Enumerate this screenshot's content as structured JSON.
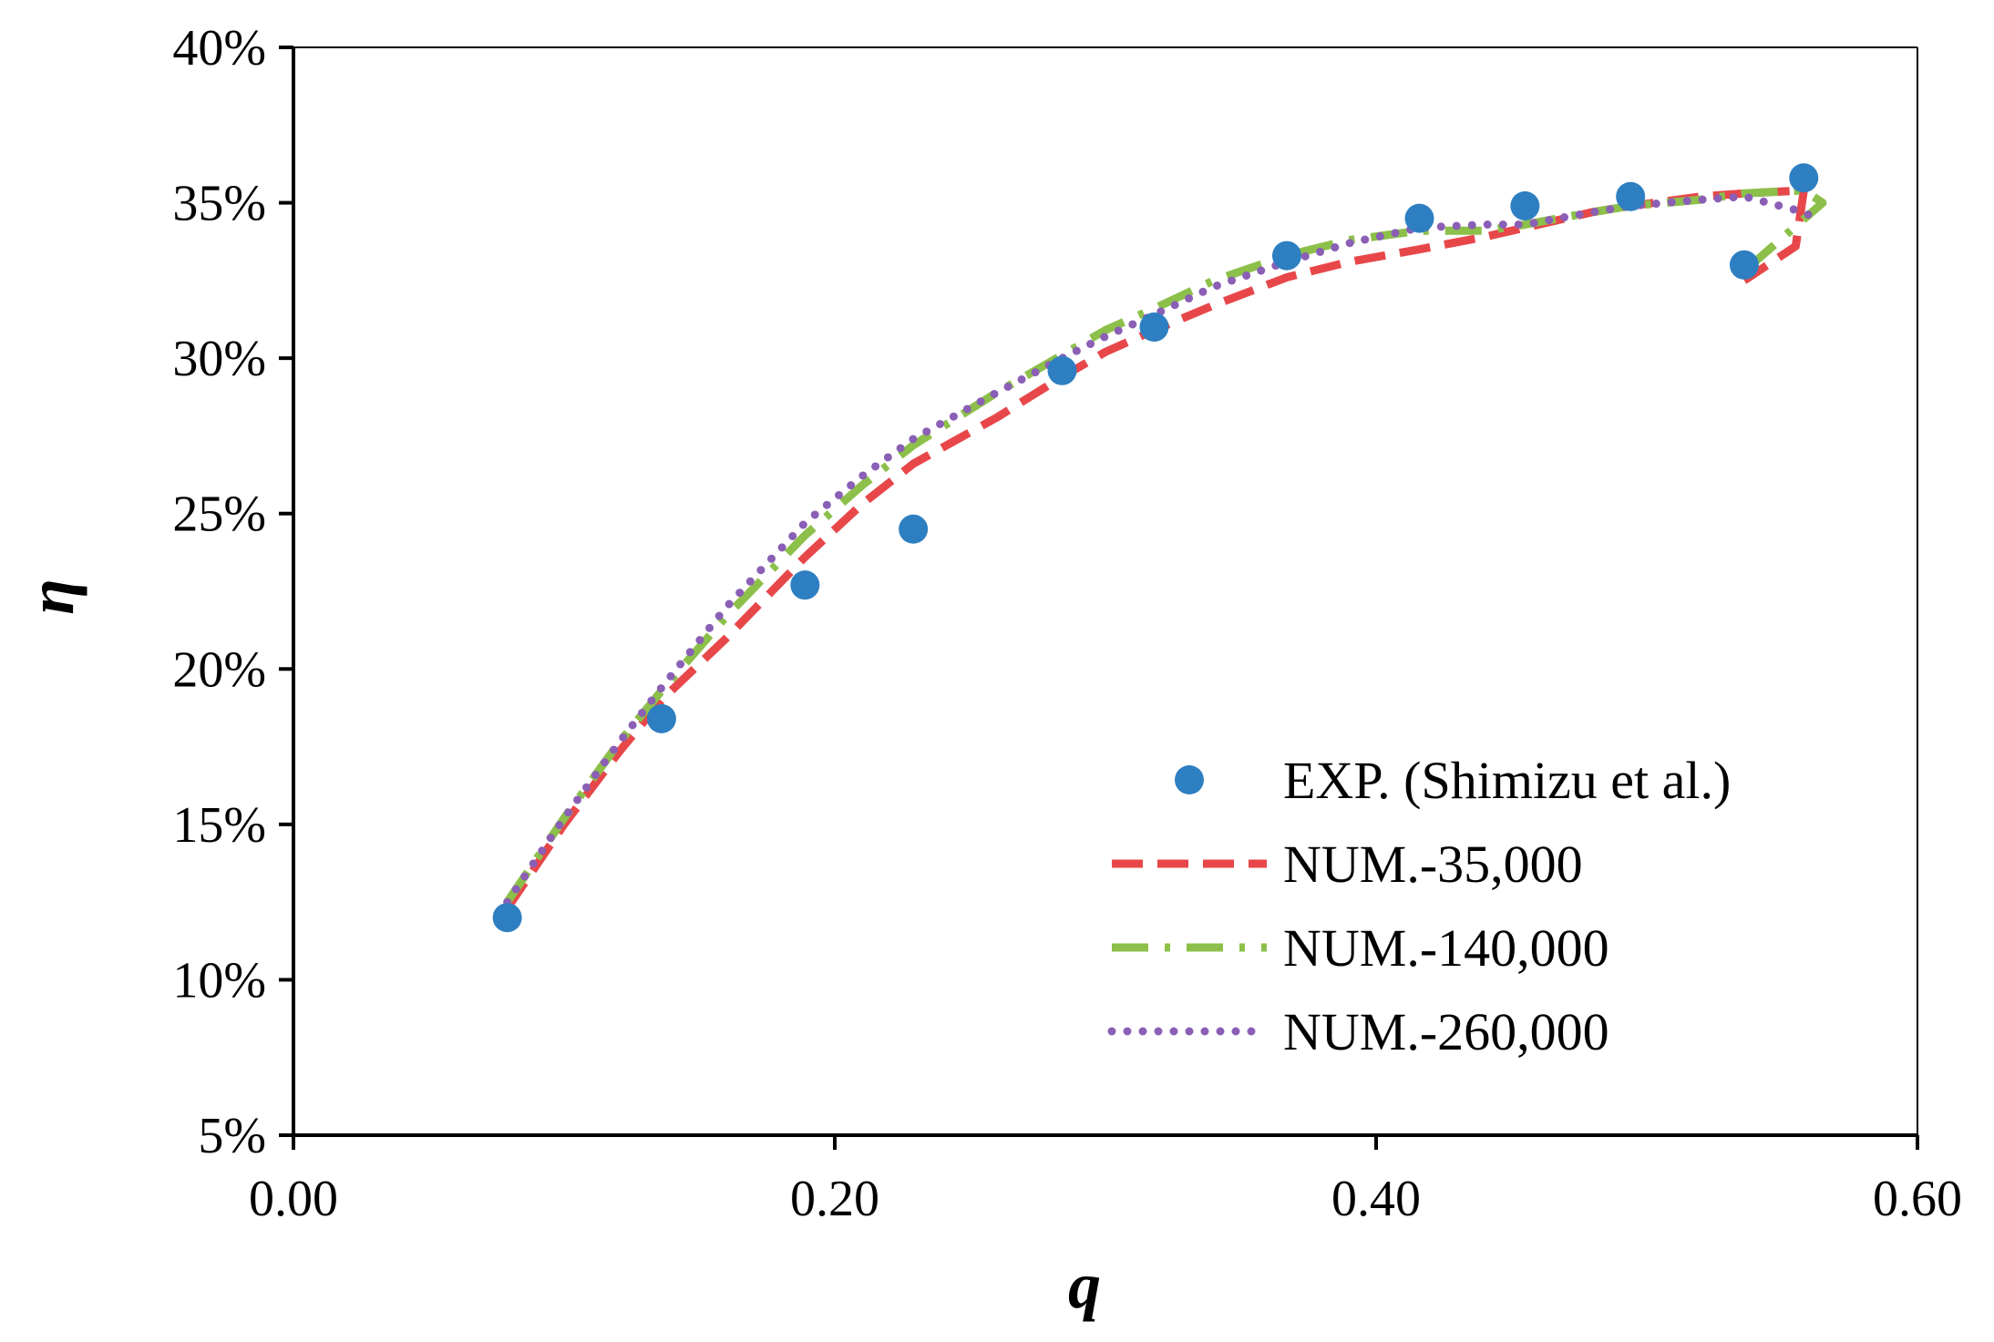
{
  "chart_data": {
    "type": "scatter",
    "title": "",
    "xlabel": "q",
    "ylabel": "η",
    "xlim": [
      0.0,
      0.6
    ],
    "ylim": [
      0.05,
      0.4
    ],
    "x_ticks": [
      0.0,
      0.2,
      0.4,
      0.6
    ],
    "x_tick_labels": [
      "0.00",
      "0.20",
      "0.40",
      "0.60"
    ],
    "y_ticks": [
      0.05,
      0.1,
      0.15,
      0.2,
      0.25,
      0.3,
      0.35,
      0.4
    ],
    "y_tick_labels": [
      "5%",
      "10%",
      "15%",
      "20%",
      "25%",
      "30%",
      "35%",
      "40%"
    ],
    "grid": false,
    "legend_position": "bottom-right",
    "series": [
      {
        "name": "EXP. (Shimizu et al.)",
        "kind": "markers",
        "color": "#2e7fc2",
        "x": [
          0.079,
          0.136,
          0.189,
          0.229,
          0.284,
          0.318,
          0.367,
          0.416,
          0.455,
          0.494,
          0.536,
          0.558
        ],
        "y": [
          0.12,
          0.184,
          0.227,
          0.245,
          0.296,
          0.31,
          0.333,
          0.345,
          0.349,
          0.352,
          0.33,
          0.358
        ]
      },
      {
        "name": "NUM.-35,000",
        "kind": "dashed",
        "color": "#e8474a",
        "x": [
          0.079,
          0.1,
          0.12,
          0.136,
          0.16,
          0.189,
          0.21,
          0.229,
          0.26,
          0.284,
          0.3,
          0.318,
          0.34,
          0.367,
          0.39,
          0.416,
          0.44,
          0.455,
          0.48,
          0.494,
          0.52,
          0.536,
          0.558,
          0.555,
          0.536
        ],
        "y": [
          0.123,
          0.15,
          0.173,
          0.19,
          0.21,
          0.236,
          0.253,
          0.266,
          0.281,
          0.294,
          0.302,
          0.309,
          0.317,
          0.326,
          0.331,
          0.335,
          0.339,
          0.342,
          0.347,
          0.349,
          0.352,
          0.353,
          0.354,
          0.336,
          0.325
        ]
      },
      {
        "name": "NUM.-140,000",
        "kind": "dashdot",
        "color": "#8cc04a",
        "x": [
          0.079,
          0.1,
          0.12,
          0.136,
          0.16,
          0.189,
          0.21,
          0.229,
          0.26,
          0.284,
          0.3,
          0.318,
          0.34,
          0.367,
          0.39,
          0.416,
          0.44,
          0.455,
          0.48,
          0.494,
          0.52,
          0.536,
          0.558,
          0.565,
          0.536
        ],
        "y": [
          0.125,
          0.152,
          0.176,
          0.193,
          0.217,
          0.243,
          0.259,
          0.272,
          0.289,
          0.301,
          0.309,
          0.316,
          0.325,
          0.333,
          0.338,
          0.341,
          0.341,
          0.343,
          0.347,
          0.349,
          0.351,
          0.353,
          0.354,
          0.35,
          0.328
        ]
      },
      {
        "name": "NUM.-260,000",
        "kind": "dotted",
        "color": "#8a5fb5",
        "x": [
          0.079,
          0.1,
          0.12,
          0.136,
          0.16,
          0.189,
          0.21,
          0.229,
          0.26,
          0.284,
          0.3,
          0.318,
          0.34,
          0.367,
          0.39,
          0.416,
          0.44,
          0.455,
          0.48,
          0.494,
          0.52,
          0.536,
          0.558,
          0.562
        ],
        "y": [
          0.125,
          0.152,
          0.176,
          0.194,
          0.22,
          0.247,
          0.262,
          0.274,
          0.289,
          0.3,
          0.307,
          0.314,
          0.323,
          0.331,
          0.337,
          0.342,
          0.343,
          0.343,
          0.347,
          0.349,
          0.351,
          0.352,
          0.347,
          0.345
        ]
      }
    ]
  }
}
